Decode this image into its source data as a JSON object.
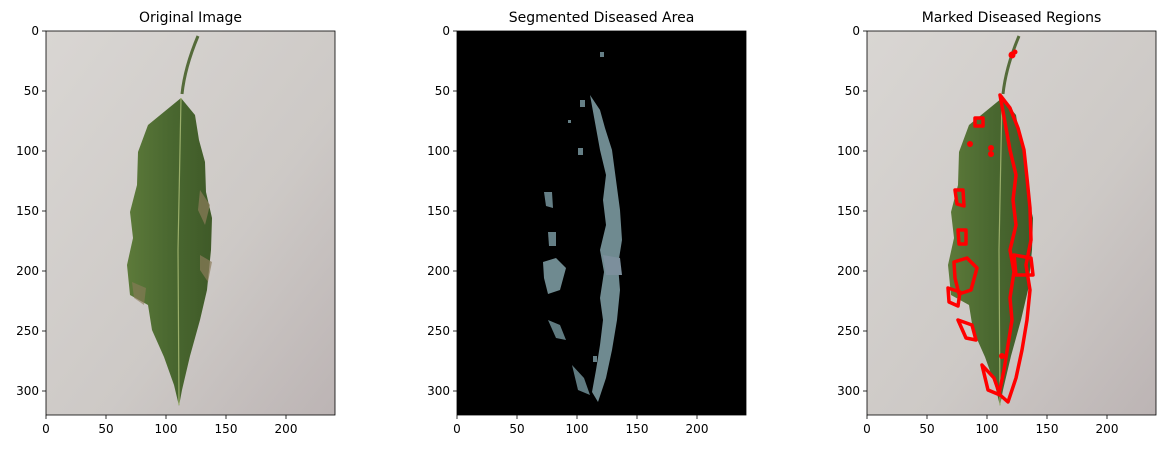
{
  "figure": {
    "panels": [
      {
        "title": "Original Image",
        "xticks": [
          "0",
          "50",
          "100",
          "150",
          "200"
        ],
        "yticks": [
          "0",
          "50",
          "100",
          "150",
          "200",
          "250",
          "300"
        ]
      },
      {
        "title": "Segmented Diseased Area",
        "xticks": [
          "0",
          "50",
          "100",
          "150",
          "200"
        ],
        "yticks": [
          "0",
          "50",
          "100",
          "150",
          "200",
          "250",
          "300"
        ]
      },
      {
        "title": "Marked Diseased Regions",
        "xticks": [
          "0",
          "50",
          "100",
          "150",
          "200"
        ],
        "yticks": [
          "0",
          "50",
          "100",
          "150",
          "200",
          "250",
          "300"
        ]
      }
    ],
    "colors": {
      "background_gray": "#cfcbc8",
      "leaf_green": "#4f6b32",
      "segment_black": "#000000",
      "diseased_blue_gray": "#6f8a90",
      "marker_red": "#ff0000"
    }
  }
}
